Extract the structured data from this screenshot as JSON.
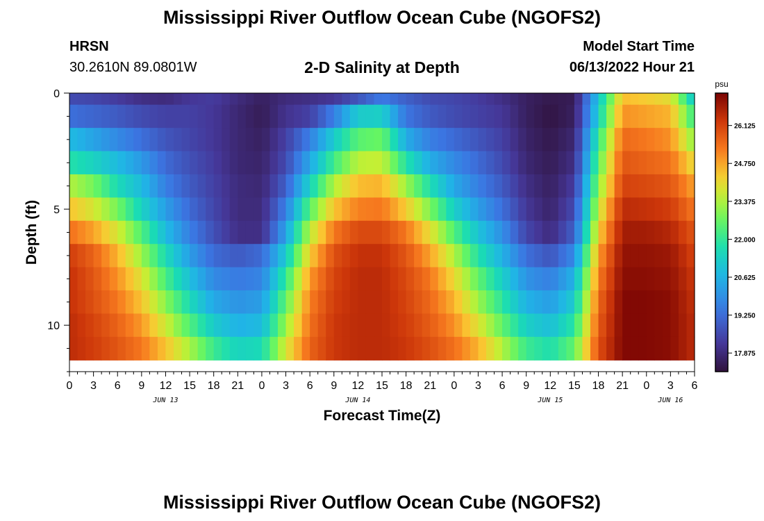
{
  "page": {
    "title": "Mississippi River Outflow Ocean Cube (NGOFS2)",
    "title_repeat": "Mississippi River Outflow Ocean Cube (NGOFS2)",
    "station": "HRSN",
    "coordinates": "30.2610N  89.0801W",
    "subtitle": "2-D Salinity at Depth",
    "model_start_label": "Model Start Time",
    "model_start_value": "06/13/2022 Hour 21"
  },
  "chart_data": {
    "type": "heatmap",
    "xlabel": "Forecast Time(Z)",
    "ylabel": "Depth (ft)",
    "colorbar_unit": "psu",
    "colorbar_ticks": [
      17.875,
      19.25,
      20.625,
      22.0,
      23.375,
      24.75,
      26.125
    ],
    "colorbar_range": [
      17.2,
      27.3
    ],
    "x_range_hours": [
      0,
      78
    ],
    "x_tick_labels": [
      "0",
      "3",
      "6",
      "9",
      "12",
      "15",
      "18",
      "21",
      "0",
      "3",
      "6",
      "9",
      "12",
      "15",
      "18",
      "21",
      "0",
      "3",
      "6",
      "9",
      "12",
      "15",
      "18",
      "21",
      "0",
      "3",
      "6"
    ],
    "date_labels": [
      {
        "label": "JUN 13",
        "hour": 12
      },
      {
        "label": "JUN 14",
        "hour": 36
      },
      {
        "label": "JUN 15",
        "hour": 60
      },
      {
        "label": "JUN 16",
        "hour": 75
      }
    ],
    "y_range_ft": [
      0,
      12
    ],
    "y_tick_labels": [
      "0",
      "5",
      "10"
    ],
    "y_tick_values": [
      0,
      5,
      10
    ],
    "depth_levels_ft": [
      0.6,
      1.5,
      2.5,
      3.5,
      4.5,
      5.5,
      6.5,
      7.5,
      8.5,
      9.5,
      10.5,
      11.5
    ],
    "depth_level_bounds_ft": [
      0.5,
      1.5,
      2.5,
      3.5,
      4.5,
      5.5,
      6.5,
      7.5,
      8.5,
      9.5,
      10.5,
      11.5,
      12.0
    ],
    "time_keys_hours": [
      0,
      3,
      6,
      9,
      12,
      15,
      18,
      21,
      24,
      27,
      30,
      33,
      36,
      39,
      42,
      45,
      48,
      51,
      54,
      57,
      60,
      63,
      66,
      69,
      72,
      75,
      78
    ],
    "salinity_psu": [
      [
        18.6,
        18.5,
        18.3,
        18.0,
        17.9,
        18.2,
        18.3,
        17.9,
        17.6,
        17.9,
        18.0,
        18.2,
        18.8,
        19.5,
        19.0,
        18.6,
        18.5,
        18.3,
        18.0,
        17.6,
        17.4,
        17.5,
        21.0,
        24.5,
        24.3,
        24.0,
        21.0
      ],
      [
        19.3,
        19.1,
        18.9,
        18.6,
        18.4,
        18.4,
        18.2,
        17.8,
        17.5,
        18.1,
        18.4,
        19.6,
        21.2,
        21.3,
        19.4,
        18.9,
        18.6,
        18.4,
        18.2,
        17.6,
        17.3,
        17.6,
        21.3,
        25.0,
        24.8,
        24.6,
        22.0
      ],
      [
        20.8,
        20.3,
        19.8,
        19.3,
        18.8,
        18.5,
        18.2,
        17.8,
        17.6,
        18.4,
        19.6,
        21.2,
        22.5,
        22.7,
        20.5,
        19.6,
        19.2,
        18.8,
        18.4,
        17.7,
        17.4,
        17.8,
        22.0,
        25.5,
        25.3,
        25.0,
        23.0
      ],
      [
        21.8,
        21.4,
        20.8,
        20.1,
        19.2,
        18.7,
        18.3,
        17.8,
        17.7,
        18.6,
        20.4,
        22.2,
        23.5,
        23.6,
        21.8,
        20.5,
        19.8,
        19.2,
        18.6,
        17.8,
        17.5,
        18.0,
        22.5,
        25.8,
        25.6,
        25.4,
        24.0
      ],
      [
        23.4,
        22.8,
        21.6,
        20.8,
        19.6,
        18.9,
        18.4,
        17.9,
        17.8,
        19.0,
        21.4,
        23.4,
        24.5,
        24.6,
        23.2,
        21.7,
        20.4,
        19.6,
        18.9,
        18.0,
        17.6,
        18.3,
        23.0,
        26.1,
        26.0,
        25.8,
        24.8
      ],
      [
        24.4,
        23.8,
        22.8,
        21.4,
        20.2,
        19.2,
        18.5,
        17.9,
        17.9,
        19.6,
        22.5,
        24.4,
        25.2,
        25.3,
        24.3,
        22.9,
        21.3,
        20.2,
        19.3,
        18.2,
        17.7,
        18.6,
        23.6,
        26.5,
        26.4,
        26.2,
        25.3
      ],
      [
        25.4,
        24.8,
        23.8,
        22.4,
        20.8,
        19.6,
        18.7,
        18.0,
        18.0,
        20.3,
        23.5,
        25.3,
        26.0,
        26.0,
        25.3,
        24.0,
        22.4,
        21.0,
        19.9,
        18.5,
        17.9,
        19.0,
        24.2,
        26.8,
        26.8,
        26.6,
        25.8
      ],
      [
        26.2,
        25.6,
        24.6,
        23.2,
        21.6,
        20.2,
        19.2,
        18.9,
        19.2,
        21.2,
        24.3,
        25.9,
        26.4,
        26.4,
        25.8,
        24.8,
        23.4,
        21.8,
        20.6,
        19.3,
        18.8,
        19.8,
        24.8,
        27.0,
        27.0,
        26.9,
        26.1
      ],
      [
        26.4,
        25.8,
        25.0,
        23.9,
        22.3,
        20.9,
        19.8,
        19.5,
        19.7,
        22.0,
        24.9,
        26.1,
        26.5,
        26.5,
        26.0,
        25.3,
        24.1,
        22.6,
        21.3,
        20.0,
        19.6,
        20.6,
        25.2,
        27.1,
        27.1,
        27.0,
        26.3
      ],
      [
        26.4,
        25.9,
        25.3,
        24.4,
        23.0,
        21.6,
        20.4,
        20.0,
        20.2,
        22.6,
        25.2,
        26.2,
        26.5,
        26.5,
        26.1,
        25.5,
        24.6,
        23.2,
        21.9,
        20.6,
        20.2,
        21.2,
        25.5,
        27.2,
        27.2,
        27.1,
        26.4
      ],
      [
        26.5,
        26.1,
        25.6,
        24.9,
        23.7,
        22.4,
        21.2,
        20.6,
        20.8,
        23.2,
        25.4,
        26.3,
        26.5,
        26.5,
        26.2,
        25.7,
        25.0,
        23.9,
        22.6,
        21.3,
        20.9,
        21.9,
        25.7,
        27.2,
        27.2,
        27.1,
        26.5
      ],
      [
        26.5,
        26.2,
        25.8,
        25.3,
        24.4,
        23.3,
        22.1,
        21.4,
        21.6,
        23.8,
        25.6,
        26.3,
        26.5,
        26.5,
        26.3,
        25.9,
        25.4,
        24.6,
        23.4,
        22.1,
        21.7,
        22.6,
        25.9,
        27.2,
        27.2,
        27.1,
        26.5
      ]
    ]
  }
}
